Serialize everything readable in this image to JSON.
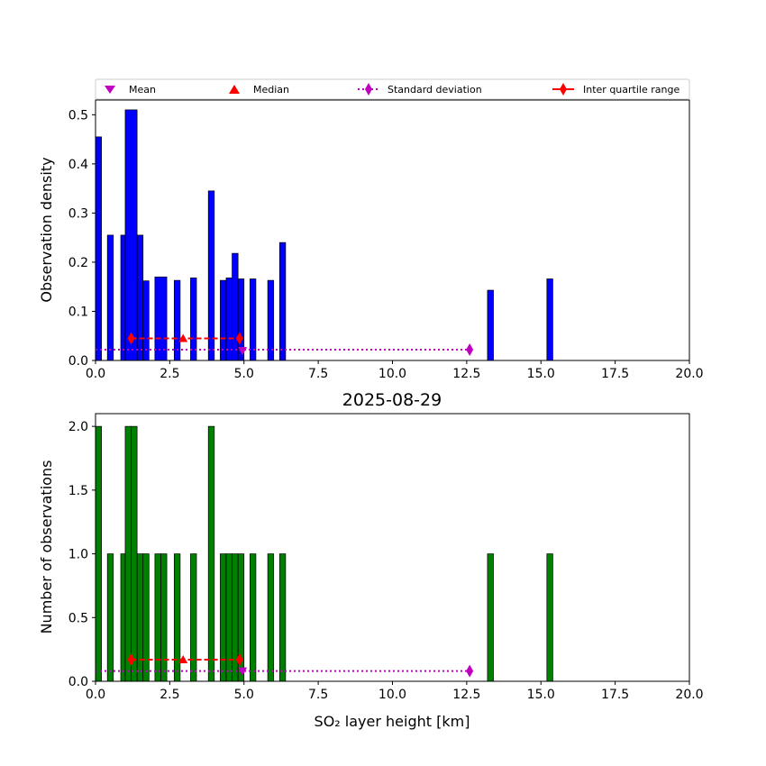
{
  "legend": {
    "items": [
      {
        "label": "Mean",
        "color": "#bf00bf",
        "marker": "triangle-down"
      },
      {
        "label": "Median",
        "color": "#ff0000",
        "marker": "triangle-up"
      },
      {
        "label": "Standard deviation",
        "color": "#bf00bf",
        "marker": "diamond-dotted-line"
      },
      {
        "label": "Inter quartile range",
        "color": "#ff0000",
        "marker": "diamond-solid-line"
      }
    ]
  },
  "chart_data": [
    {
      "type": "bar",
      "title": "",
      "xlabel": "",
      "ylabel": "Observation density",
      "xlim": [
        0,
        20
      ],
      "ylim": [
        0,
        0.53
      ],
      "xticks": [
        0,
        2.5,
        5,
        7.5,
        10,
        12.5,
        15,
        17.5,
        20
      ],
      "xtick_labels": [
        "0.0",
        "2.5",
        "5.0",
        "7.5",
        "10.0",
        "12.5",
        "15.0",
        "17.5",
        "20.0"
      ],
      "yticks": [
        0,
        0.1,
        0.2,
        0.3,
        0.4,
        0.5
      ],
      "ytick_labels": [
        "0.0",
        "0.1",
        "0.2",
        "0.3",
        "0.4",
        "0.5"
      ],
      "bar_color": "#0000ff",
      "bars": [
        {
          "x": 0.0,
          "x2": 0.2,
          "y": 0.455
        },
        {
          "x": 0.4,
          "x2": 0.6,
          "y": 0.255
        },
        {
          "x": 0.85,
          "x2": 1.0,
          "y": 0.255
        },
        {
          "x": 1.0,
          "x2": 1.4,
          "y": 0.51
        },
        {
          "x": 1.4,
          "x2": 1.6,
          "y": 0.255
        },
        {
          "x": 1.6,
          "x2": 1.8,
          "y": 0.162
        },
        {
          "x": 2.0,
          "x2": 2.4,
          "y": 0.17
        },
        {
          "x": 2.65,
          "x2": 2.85,
          "y": 0.163
        },
        {
          "x": 3.2,
          "x2": 3.4,
          "y": 0.168
        },
        {
          "x": 3.8,
          "x2": 4.0,
          "y": 0.345
        },
        {
          "x": 4.2,
          "x2": 4.4,
          "y": 0.163
        },
        {
          "x": 4.4,
          "x2": 4.6,
          "y": 0.168
        },
        {
          "x": 4.6,
          "x2": 4.8,
          "y": 0.218
        },
        {
          "x": 4.8,
          "x2": 5.0,
          "y": 0.166
        },
        {
          "x": 5.2,
          "x2": 5.4,
          "y": 0.166
        },
        {
          "x": 5.8,
          "x2": 6.0,
          "y": 0.163
        },
        {
          "x": 6.2,
          "x2": 6.4,
          "y": 0.24
        },
        {
          "x": 13.2,
          "x2": 13.4,
          "y": 0.143
        },
        {
          "x": 15.2,
          "x2": 15.4,
          "y": 0.166
        }
      ],
      "stats": {
        "mean": {
          "x": 4.95,
          "y": 0.02
        },
        "median": {
          "x": 2.95,
          "y": 0.045
        },
        "std_line": {
          "x": [
            0.0,
            12.6
          ],
          "y": 0.022
        },
        "iqr_line": {
          "x": [
            1.2,
            4.85
          ],
          "y": 0.045
        }
      }
    },
    {
      "type": "bar",
      "title": "2025-08-29",
      "xlabel": "SO₂ layer height [km]",
      "ylabel": "Number of observations",
      "xlim": [
        0,
        20
      ],
      "ylim": [
        0,
        2.1
      ],
      "xticks": [
        0,
        2.5,
        5,
        7.5,
        10,
        12.5,
        15,
        17.5,
        20
      ],
      "xtick_labels": [
        "0.0",
        "2.5",
        "5.0",
        "7.5",
        "10.0",
        "12.5",
        "15.0",
        "17.5",
        "20.0"
      ],
      "yticks": [
        0,
        0.5,
        1,
        1.5,
        2
      ],
      "ytick_labels": [
        "0.0",
        "0.5",
        "1.0",
        "1.5",
        "2.0"
      ],
      "bar_color": "#008000",
      "bars": [
        {
          "x": 0.0,
          "x2": 0.2,
          "y": 2
        },
        {
          "x": 0.4,
          "x2": 0.6,
          "y": 1
        },
        {
          "x": 0.85,
          "x2": 1.0,
          "y": 1
        },
        {
          "x": 1.0,
          "x2": 1.2,
          "y": 2
        },
        {
          "x": 1.2,
          "x2": 1.4,
          "y": 2
        },
        {
          "x": 1.4,
          "x2": 1.6,
          "y": 1
        },
        {
          "x": 1.6,
          "x2": 1.8,
          "y": 1
        },
        {
          "x": 2.0,
          "x2": 2.2,
          "y": 1
        },
        {
          "x": 2.2,
          "x2": 2.4,
          "y": 1
        },
        {
          "x": 2.65,
          "x2": 2.85,
          "y": 1
        },
        {
          "x": 3.2,
          "x2": 3.4,
          "y": 1
        },
        {
          "x": 3.8,
          "x2": 4.0,
          "y": 2
        },
        {
          "x": 4.2,
          "x2": 4.4,
          "y": 1
        },
        {
          "x": 4.4,
          "x2": 4.6,
          "y": 1
        },
        {
          "x": 4.6,
          "x2": 4.8,
          "y": 1
        },
        {
          "x": 4.8,
          "x2": 5.0,
          "y": 1
        },
        {
          "x": 5.2,
          "x2": 5.4,
          "y": 1
        },
        {
          "x": 5.8,
          "x2": 6.0,
          "y": 1
        },
        {
          "x": 6.2,
          "x2": 6.4,
          "y": 1
        },
        {
          "x": 13.2,
          "x2": 13.4,
          "y": 1
        },
        {
          "x": 15.2,
          "x2": 15.4,
          "y": 1
        }
      ],
      "stats": {
        "mean": {
          "x": 4.95,
          "y": 0.08
        },
        "median": {
          "x": 2.95,
          "y": 0.17
        },
        "std_line": {
          "x": [
            0.0,
            12.6
          ],
          "y": 0.08
        },
        "iqr_line": {
          "x": [
            1.2,
            4.85
          ],
          "y": 0.17
        }
      }
    }
  ]
}
